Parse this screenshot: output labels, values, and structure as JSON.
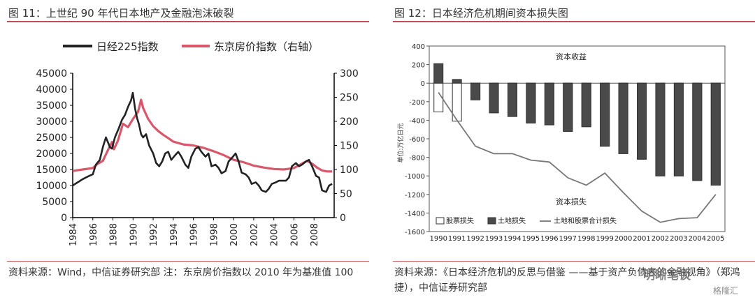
{
  "left": {
    "title": "图 11：上世纪 90 年代日本地产及金融泡沫破裂",
    "source": "资料来源：Wind，中信证券研究部 注：东京房价指数以 2010 年为基准值 100"
  },
  "right": {
    "title": "图 12：日本经济危机期间资本损失图",
    "source": "资料来源：《日本经济危机的反思与借鉴 ——基于资产负债表的金融视角》（郑鸿捷），中信证券研究部"
  },
  "watermark": {
    "text": "明晰笔谈",
    "sub": "格隆汇"
  },
  "chart_data": [
    {
      "type": "line",
      "legend": [
        "日经225指数",
        "东京房价指数（右轴）"
      ],
      "legend_position": "top",
      "x_ticks": [
        "1984",
        "1986",
        "1988",
        "1990",
        "1992",
        "1994",
        "1996",
        "1998",
        "2000",
        "2002",
        "2004",
        "2006",
        "2008"
      ],
      "y_ticks": [
        "0",
        "5000",
        "10000",
        "15000",
        "20000",
        "25000",
        "30000",
        "35000",
        "40000",
        "45000"
      ],
      "y2_ticks": [
        "0",
        "50",
        "100",
        "150",
        "200",
        "250",
        "300"
      ],
      "ylim": [
        0,
        45000
      ],
      "y2lim": [
        0,
        300
      ],
      "colors": {
        "nikkei": "#222222",
        "tokyo": "#d9576b"
      },
      "series": [
        {
          "name": "日经225指数",
          "axis": "left",
          "x": [
            1984.0,
            1984.5,
            1985.0,
            1985.5,
            1986.0,
            1986.3,
            1986.7,
            1987.0,
            1987.3,
            1987.7,
            1987.9,
            1988.2,
            1988.6,
            1988.9,
            1989.2,
            1989.5,
            1989.8,
            1989.98,
            1990.2,
            1990.4,
            1990.6,
            1990.8,
            1991.0,
            1991.3,
            1991.6,
            1992.0,
            1992.3,
            1992.6,
            1992.9,
            1993.2,
            1993.5,
            1993.8,
            1994.2,
            1994.5,
            1994.8,
            1995.2,
            1995.5,
            1995.8,
            1996.2,
            1996.5,
            1996.8,
            1997.2,
            1997.5,
            1997.8,
            1998.2,
            1998.5,
            1998.8,
            1999.2,
            1999.5,
            1999.8,
            2000.2,
            2000.5,
            2000.8,
            2001.2,
            2001.5,
            2001.8,
            2002.2,
            2002.5,
            2002.8,
            2003.2,
            2003.5,
            2003.8,
            2004.2,
            2004.5,
            2004.8,
            2005.2,
            2005.5,
            2005.8,
            2006.2,
            2006.5,
            2006.8,
            2007.2,
            2007.5,
            2007.8,
            2008.2,
            2008.5,
            2008.8,
            2009.2,
            2009.5,
            2009.8
          ],
          "values": [
            10000,
            11000,
            12000,
            12800,
            13500,
            16500,
            18000,
            22000,
            25000,
            22000,
            21500,
            25000,
            28000,
            30500,
            32000,
            34500,
            36500,
            38900,
            34000,
            31000,
            29000,
            26000,
            25000,
            26000,
            22500,
            20000,
            17000,
            16000,
            17500,
            20000,
            20500,
            18000,
            19500,
            20500,
            19000,
            16500,
            15500,
            19000,
            21500,
            22000,
            20500,
            19000,
            20000,
            16000,
            16500,
            15500,
            13800,
            14500,
            17500,
            18500,
            20000,
            17500,
            14000,
            13500,
            12500,
            10500,
            11000,
            10000,
            8500,
            8000,
            9000,
            10500,
            11000,
            11500,
            11500,
            11500,
            12500,
            16000,
            17000,
            16000,
            16500,
            17500,
            18000,
            16000,
            13000,
            12500,
            8500,
            8000,
            10000,
            10500
          ]
        },
        {
          "name": "东京房价指数（右轴）",
          "axis": "right",
          "x": [
            1984.0,
            1985.0,
            1986.0,
            1986.5,
            1987.0,
            1987.5,
            1987.9,
            1988.1,
            1988.5,
            1989.0,
            1989.5,
            1990.0,
            1990.5,
            1990.8,
            1991.0,
            1991.5,
            1992.0,
            1992.5,
            1993.0,
            1993.5,
            1994.0,
            1995.0,
            1996.0,
            1997.0,
            1998.0,
            1999.0,
            2000.0,
            2001.0,
            2002.0,
            2003.0,
            2004.0,
            2005.0,
            2006.0,
            2006.8,
            2007.3,
            2007.8,
            2008.3,
            2008.8,
            2009.3,
            2009.8
          ],
          "values": [
            97,
            100,
            103,
            112,
            118,
            140,
            157,
            142,
            160,
            195,
            188,
            205,
            220,
            245,
            228,
            205,
            190,
            180,
            172,
            165,
            158,
            152,
            150,
            145,
            138,
            130,
            120,
            115,
            108,
            104,
            101,
            100,
            103,
            112,
            118,
            112,
            104,
            98,
            96,
            96
          ]
        }
      ]
    },
    {
      "type": "bar",
      "categories": [
        "1990",
        "1991",
        "1992",
        "1993",
        "1994",
        "1995",
        "1996",
        "1997",
        "1998",
        "1999",
        "2000",
        "2001",
        "2002",
        "2003",
        "2004",
        "2005"
      ],
      "y_ticks": [
        "-1600",
        "-1400",
        "-1200",
        "-1000",
        "-800",
        "-600",
        "-400",
        "-200",
        "0",
        "200",
        "400"
      ],
      "ylim": [
        -1600,
        400
      ],
      "ylabel": "单位:万亿日元",
      "annotations": [
        "资本收益",
        "资本损失"
      ],
      "legend": [
        "股票损失",
        "土地损失",
        "土地和股票合计损失"
      ],
      "legend_position": "bottom",
      "series": [
        {
          "name": "股票损失",
          "values": [
            -310,
            -410,
            -180,
            -320,
            -360,
            -430,
            -450,
            -520,
            -470,
            -680,
            -760,
            -820,
            -1000,
            -1000,
            -1050,
            -1100
          ]
        },
        {
          "name": "土地损失",
          "values": [
            210,
            40,
            -180,
            -320,
            -360,
            -430,
            -450,
            -520,
            -470,
            -680,
            -760,
            -820,
            -1000,
            -1000,
            -1050,
            -1100
          ]
        },
        {
          "name": "土地和股票合计损失",
          "values": [
            -100,
            -400,
            -680,
            -760,
            -760,
            -830,
            -850,
            -1020,
            -1100,
            -970,
            -1180,
            -1380,
            -1500,
            -1460,
            -1450,
            -1200
          ]
        }
      ]
    }
  ]
}
